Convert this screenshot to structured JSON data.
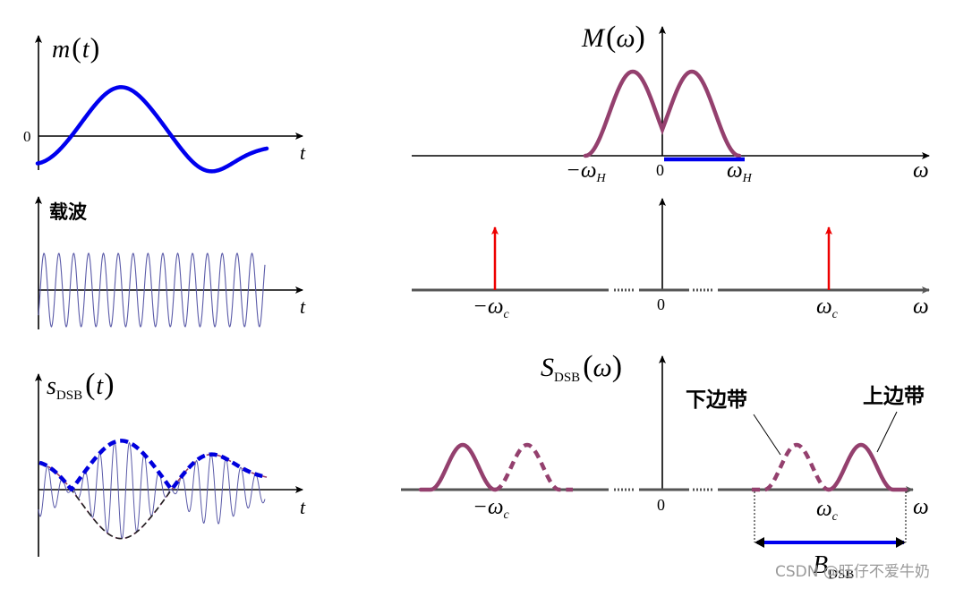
{
  "colors": {
    "message": "#0000ee",
    "carrier": "#5a5aa8",
    "spectrum": "#94406e",
    "impulse": "#ee0000",
    "envelope": "#0000dd",
    "axis": "#000000",
    "freq_axis": "#555555"
  },
  "left": {
    "message": {
      "label_main": "m",
      "label_paren_l": "(",
      "label_var": "t",
      "label_paren_r": ")",
      "zero": "0",
      "axis_var": "t"
    },
    "carrier": {
      "label": "载波",
      "axis_var": "t"
    },
    "dsb": {
      "label_main": "s",
      "label_sub": "DSB",
      "label_paren_l": "(",
      "label_var": "t",
      "label_paren_r": ")",
      "axis_var": "t"
    }
  },
  "right": {
    "M": {
      "label_main": "M",
      "label_paren_l": "(",
      "label_var": "ω",
      "label_paren_r": ")",
      "neg_tick": "−ω",
      "neg_sub": "H",
      "zero": "0",
      "pos_tick": "ω",
      "pos_sub": "H",
      "axis_var": "ω"
    },
    "carrier_spec": {
      "neg_tick": "−ω",
      "neg_sub": "c",
      "zero": "0",
      "pos_tick": "ω",
      "pos_sub": "c",
      "axis_var": "ω"
    },
    "S": {
      "label_main": "S",
      "label_sub": "DSB",
      "label_paren_l": "(",
      "label_var": "ω",
      "label_paren_r": ")",
      "lower_sideband": "下边带",
      "upper_sideband": "上边带",
      "neg_tick": "−ω",
      "neg_sub": "c",
      "zero": "0",
      "pos_tick": "ω",
      "pos_sub": "c",
      "axis_var": "ω",
      "bw_main": "B",
      "bw_sub": "DSB"
    }
  },
  "watermark": "CSDN @旺仔不爱牛奶"
}
